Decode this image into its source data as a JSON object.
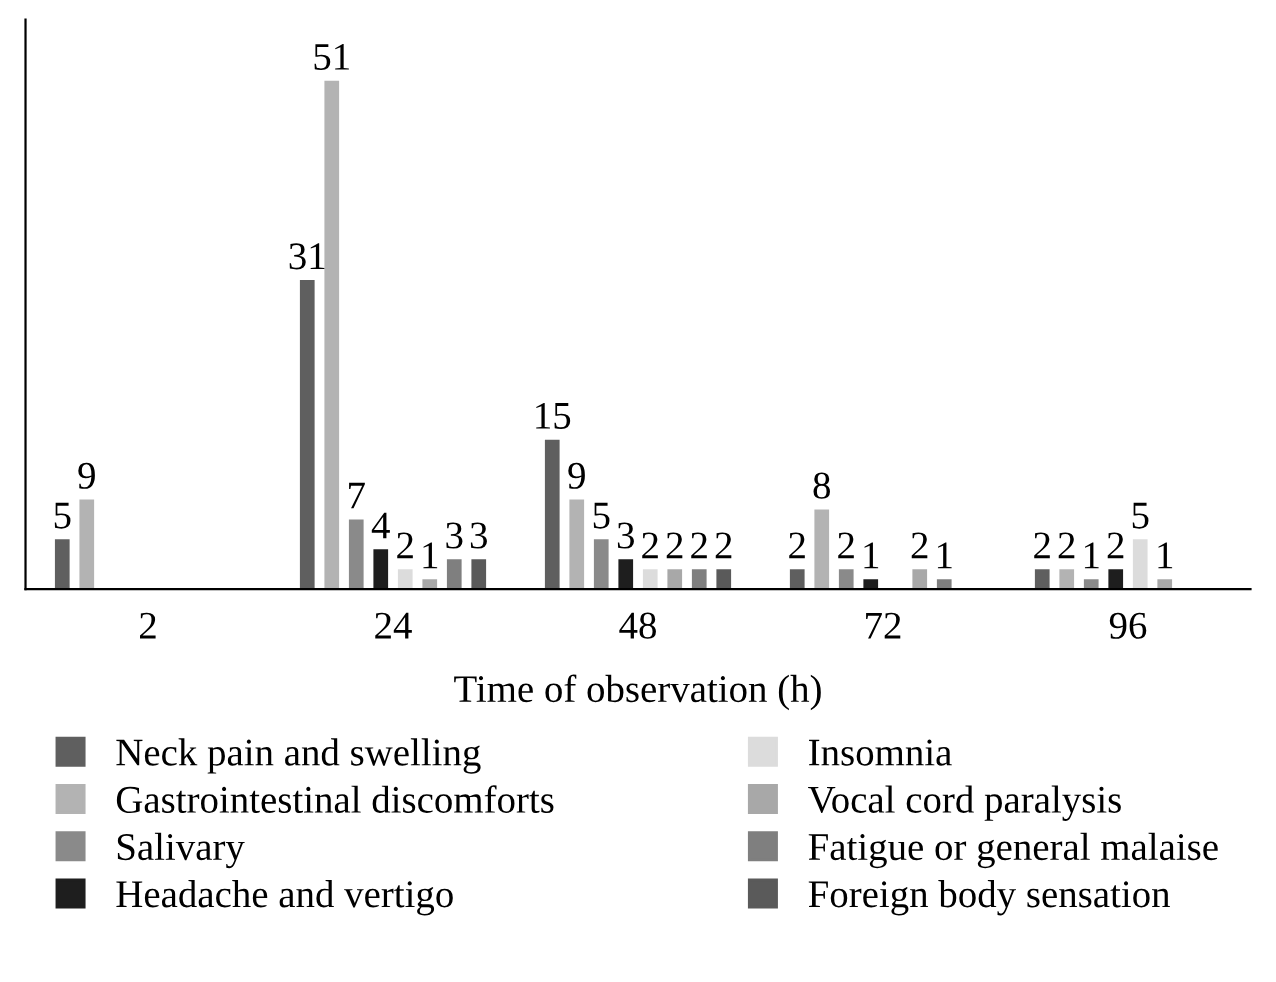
{
  "chart_data": {
    "type": "bar",
    "xlabel": "Time of observation (h)",
    "categories": [
      "2",
      "24",
      "48",
      "72",
      "96"
    ],
    "series": [
      {
        "name": "Neck pain and swelling",
        "color": "#5f5f5f",
        "values": [
          5,
          31,
          15,
          2,
          2
        ]
      },
      {
        "name": "Gastrointestinal discomforts",
        "color": "#b3b3b3",
        "values": [
          9,
          51,
          9,
          8,
          2
        ]
      },
      {
        "name": "Salivary",
        "color": "#8a8a8a",
        "values": [
          null,
          7,
          5,
          2,
          1
        ]
      },
      {
        "name": "Headache and vertigo",
        "color": "#1e1e1e",
        "values": [
          null,
          4,
          3,
          1,
          2
        ]
      },
      {
        "name": "Insomnia",
        "color": "#dcdcdc",
        "values": [
          null,
          2,
          2,
          null,
          5
        ]
      },
      {
        "name": "Vocal cord paralysis",
        "color": "#a8a8a8",
        "values": [
          null,
          1,
          2,
          2,
          1
        ]
      },
      {
        "name": "Fatigue or general malaise",
        "color": "#7f7f7f",
        "values": [
          null,
          3,
          2,
          1,
          null
        ]
      },
      {
        "name": "Foreign body sensation",
        "color": "#5a5a5a",
        "values": [
          null,
          3,
          2,
          null,
          null
        ]
      }
    ],
    "data_labels": true,
    "legend": "bottom",
    "grid": false
  }
}
